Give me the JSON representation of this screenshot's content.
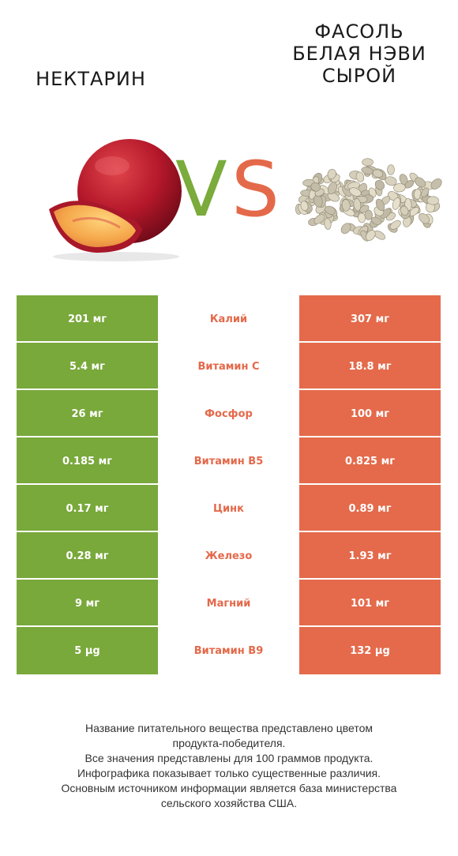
{
  "left_product": {
    "title": "НЕКТАРИН",
    "image": "nectarine-illustration",
    "color": "#7aab3b"
  },
  "right_product": {
    "title_lines": [
      "ФАСОЛЬ",
      "БЕЛАЯ НЭВИ",
      "СЫРОЙ"
    ],
    "image": "white-navy-beans-illustration",
    "color": "#e4694a"
  },
  "vs": {
    "v": "V",
    "s": "S"
  },
  "rows": [
    {
      "nutrient": "Калий",
      "left": "201 мг",
      "right": "307 мг",
      "winner": "right"
    },
    {
      "nutrient": "Витамин C",
      "left": "5.4 мг",
      "right": "18.8 мг",
      "winner": "right"
    },
    {
      "nutrient": "Фосфор",
      "left": "26 мг",
      "right": "100 мг",
      "winner": "right"
    },
    {
      "nutrient": "Витамин B5",
      "left": "0.185 мг",
      "right": "0.825 мг",
      "winner": "right"
    },
    {
      "nutrient": "Цинк",
      "left": "0.17 мг",
      "right": "0.89 мг",
      "winner": "right"
    },
    {
      "nutrient": "Железо",
      "left": "0.28 мг",
      "right": "1.93 мг",
      "winner": "right"
    },
    {
      "nutrient": "Магний",
      "left": "9 мг",
      "right": "101 мг",
      "winner": "right"
    },
    {
      "nutrient": "Витамин B9",
      "left": "5 µg",
      "right": "132 µg",
      "winner": "right"
    }
  ],
  "footnote": [
    "Название питательного вещества представлено цветом",
    "продукта-победителя.",
    "Все значения представлены для 100 граммов продукта.",
    "Инфографика показывает только существенные различия.",
    "Основным источником информации является база министерства",
    "сельского хозяйства США."
  ]
}
